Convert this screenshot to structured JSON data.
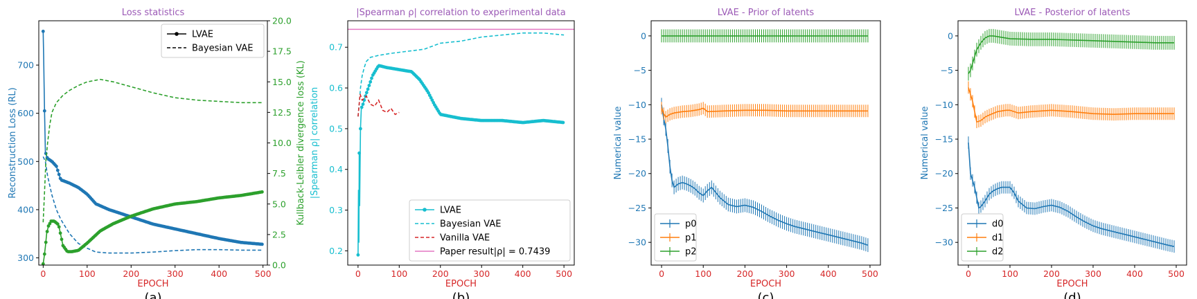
{
  "chart_data": [
    {
      "type": "line",
      "panel_label": "(a)",
      "title": "Loss statistics",
      "title_color": "#9b59b6",
      "xlabel": "EPOCH",
      "xlabel_color": "#d62728",
      "ylabel": "Reconstruction Loss (RL)",
      "ylabel_color": "#1f77b4",
      "y2label": "Kullback-Leibler divergence loss (KL)",
      "y2label_color": "#2ca02c",
      "xlim": [
        -10,
        510
      ],
      "ylim": [
        285,
        792
      ],
      "y2lim": [
        0,
        20
      ],
      "xticks": [
        0,
        100,
        200,
        300,
        400,
        500
      ],
      "yticks": [
        300,
        400,
        500,
        600,
        700
      ],
      "y2ticks": [
        0.0,
        2.5,
        5.0,
        7.5,
        10.0,
        12.5,
        15.0,
        17.5,
        20.0
      ],
      "y2tick_labels": [
        "0.0",
        "2.5",
        "5.0",
        "7.5",
        "10.0",
        "12.5",
        "15.0",
        "17.5",
        "20.0"
      ],
      "legend": {
        "position": "top-right",
        "entries": [
          {
            "label": "LVAE",
            "style": "solid-marker",
            "color": "#000000"
          },
          {
            "label": "Bayesian VAE",
            "style": "dashed",
            "color": "#000000"
          }
        ]
      },
      "series": [
        {
          "name": "RL (LVAE)",
          "axis": "left",
          "style": "solid-marker",
          "color": "#1f77b4",
          "x": [
            0,
            1,
            2,
            3,
            5,
            8,
            10,
            20,
            30,
            40,
            60,
            80,
            100,
            120,
            150,
            200,
            250,
            300,
            350,
            400,
            450,
            500
          ],
          "y": [
            770,
            720,
            665,
            605,
            520,
            510,
            506,
            500,
            490,
            462,
            455,
            446,
            432,
            412,
            400,
            385,
            370,
            360,
            350,
            340,
            332,
            328
          ]
        },
        {
          "name": "RL (Bayesian VAE)",
          "axis": "left",
          "style": "dashed",
          "color": "#1f77b4",
          "x": [
            0,
            5,
            10,
            20,
            30,
            40,
            60,
            80,
            100,
            120,
            150,
            200,
            250,
            300,
            350,
            400,
            450,
            500
          ],
          "y": [
            510,
            500,
            470,
            430,
            400,
            380,
            350,
            330,
            320,
            312,
            310,
            310,
            312,
            315,
            317,
            317,
            316,
            316
          ]
        },
        {
          "name": "KL (LVAE)",
          "axis": "right",
          "style": "solid-marker",
          "color": "#2ca02c",
          "x": [
            0,
            2,
            5,
            8,
            12,
            18,
            25,
            35,
            45,
            55,
            65,
            80,
            100,
            130,
            160,
            200,
            250,
            300,
            350,
            400,
            450,
            500
          ],
          "y": [
            0.1,
            0.6,
            1.5,
            2.6,
            3.2,
            3.6,
            3.6,
            3.3,
            1.6,
            1.1,
            1.1,
            1.2,
            1.8,
            2.8,
            3.4,
            4.0,
            4.6,
            5.0,
            5.2,
            5.5,
            5.7,
            6.0
          ]
        },
        {
          "name": "KL (Bayesian VAE)",
          "axis": "right",
          "style": "dashed",
          "color": "#2ca02c",
          "x": [
            0,
            3,
            6,
            10,
            15,
            20,
            30,
            45,
            60,
            80,
            100,
            130,
            160,
            200,
            250,
            300,
            350,
            400,
            450,
            500
          ],
          "y": [
            3.5,
            6.0,
            8.5,
            10.0,
            11.5,
            12.5,
            13.3,
            13.9,
            14.3,
            14.7,
            15.0,
            15.2,
            15.0,
            14.6,
            14.1,
            13.7,
            13.5,
            13.4,
            13.3,
            13.3
          ]
        }
      ]
    },
    {
      "type": "line",
      "panel_label": "(b)",
      "title": "|Spearman ρ| correlation to experimental data",
      "title_color": "#9b59b6",
      "xlabel": "EPOCH",
      "xlabel_color": "#d62728",
      "ylabel": "|Spearman ρ| correlation",
      "ylabel_color": "#17becf",
      "xlim": [
        -25,
        525
      ],
      "ylim": [
        0.165,
        0.765
      ],
      "xticks": [
        0,
        100,
        200,
        300,
        400,
        500
      ],
      "yticks": [
        0.2,
        0.3,
        0.4,
        0.5,
        0.6,
        0.7
      ],
      "ytick_labels": [
        "0.2",
        "0.3",
        "0.4",
        "0.5",
        "0.6",
        "0.7"
      ],
      "hline": {
        "y": 0.7439,
        "color": "#e377c2"
      },
      "legend": {
        "position": "bottom-right",
        "entries": [
          {
            "label": "LVAE",
            "style": "solid-marker",
            "color": "#17becf"
          },
          {
            "label": "Bayesian VAE",
            "style": "dashed",
            "color": "#17becf"
          },
          {
            "label": "Vanilla VAE",
            "style": "dashed",
            "color": "#d62728"
          },
          {
            "label": "Paper result|ρ| = 0.7439",
            "style": "solid",
            "color": "#e377c2"
          }
        ]
      },
      "series": [
        {
          "name": "LVAE",
          "style": "solid-marker",
          "color": "#17becf",
          "x": [
            0,
            1,
            2,
            3,
            4,
            6,
            8,
            12,
            18,
            25,
            35,
            50,
            70,
            100,
            130,
            150,
            170,
            185,
            200,
            250,
            300,
            350,
            400,
            450,
            500
          ],
          "y": [
            0.19,
            0.35,
            0.22,
            0.44,
            0.31,
            0.5,
            0.55,
            0.56,
            0.58,
            0.6,
            0.63,
            0.655,
            0.65,
            0.645,
            0.64,
            0.62,
            0.59,
            0.56,
            0.535,
            0.525,
            0.52,
            0.52,
            0.515,
            0.52,
            0.515
          ]
        },
        {
          "name": "Bayesian VAE",
          "style": "dashed",
          "color": "#17becf",
          "x": [
            0,
            3,
            6,
            10,
            15,
            20,
            30,
            50,
            80,
            120,
            160,
            200,
            250,
            300,
            350,
            400,
            450,
            500
          ],
          "y": [
            0.53,
            0.56,
            0.6,
            0.63,
            0.65,
            0.665,
            0.675,
            0.68,
            0.685,
            0.69,
            0.695,
            0.71,
            0.715,
            0.725,
            0.73,
            0.735,
            0.735,
            0.73
          ]
        },
        {
          "name": "Vanilla VAE",
          "style": "dashed",
          "color": "#d62728",
          "x": [
            0,
            5,
            10,
            20,
            30,
            40,
            50,
            60,
            70,
            80,
            90,
            100
          ],
          "y": [
            0.53,
            0.585,
            0.57,
            0.58,
            0.56,
            0.555,
            0.57,
            0.545,
            0.54,
            0.55,
            0.535,
            0.54
          ]
        }
      ]
    },
    {
      "type": "line",
      "panel_label": "(c)",
      "title": "LVAE - Prior of latents",
      "title_color": "#9b59b6",
      "xlabel": "EPOCH",
      "xlabel_color": "#d62728",
      "ylabel": "Numerical value",
      "ylabel_color": "#1f77b4",
      "xlim": [
        -25,
        525
      ],
      "ylim": [
        -33.3,
        2.2
      ],
      "xticks": [
        0,
        100,
        200,
        300,
        400,
        500
      ],
      "yticks": [
        0,
        -5,
        -10,
        -15,
        -20,
        -25,
        -30
      ],
      "errorbars": true,
      "legend": {
        "position": "bottom-left",
        "entries": [
          {
            "label": "p0",
            "color": "#1f77b4"
          },
          {
            "label": "p1",
            "color": "#ff7f0e"
          },
          {
            "label": "p2",
            "color": "#2ca02c"
          }
        ]
      },
      "series": [
        {
          "name": "p0",
          "color": "#1f77b4",
          "err": 1.0,
          "x": [
            0,
            5,
            10,
            15,
            20,
            25,
            30,
            40,
            50,
            60,
            70,
            80,
            90,
            100,
            110,
            120,
            140,
            160,
            180,
            200,
            220,
            240,
            260,
            280,
            300,
            320,
            340,
            360,
            380,
            400,
            420,
            440,
            460,
            480,
            495
          ],
          "y": [
            -10,
            -12,
            -13.5,
            -16,
            -19,
            -21,
            -22,
            -21.5,
            -21.3,
            -21.5,
            -21.8,
            -22.2,
            -22.8,
            -23.2,
            -22.5,
            -22.0,
            -23.5,
            -24.5,
            -24.8,
            -24.6,
            -24.9,
            -25.5,
            -26.2,
            -26.8,
            -27.3,
            -27.7,
            -28.0,
            -28.3,
            -28.6,
            -28.9,
            -29.2,
            -29.5,
            -29.8,
            -30.1,
            -30.4
          ]
        },
        {
          "name": "p1",
          "color": "#ff7f0e",
          "err": 0.9,
          "x": [
            0,
            5,
            10,
            20,
            30,
            50,
            70,
            90,
            100,
            110,
            150,
            200,
            250,
            300,
            350,
            400,
            450,
            495
          ],
          "y": [
            -10.5,
            -11.3,
            -11.8,
            -11.4,
            -11.2,
            -11.0,
            -10.9,
            -10.7,
            -10.5,
            -11.0,
            -10.9,
            -10.8,
            -10.8,
            -10.9,
            -10.9,
            -10.9,
            -10.9,
            -10.9
          ]
        },
        {
          "name": "p2",
          "color": "#2ca02c",
          "err": 0.95,
          "x": [
            0,
            100,
            200,
            300,
            400,
            495
          ],
          "y": [
            0.0,
            0.0,
            0.0,
            0.0,
            0.0,
            0.0
          ]
        }
      ]
    },
    {
      "type": "line",
      "panel_label": "(d)",
      "title": "LVAE - Posterior of latents",
      "title_color": "#9b59b6",
      "xlabel": "EPOCH",
      "xlabel_color": "#d62728",
      "ylabel": "Numerical value",
      "ylabel_color": "#1f77b4",
      "xlim": [
        -25,
        525
      ],
      "ylim": [
        -33.3,
        2.2
      ],
      "xticks": [
        0,
        100,
        200,
        300,
        400,
        500
      ],
      "yticks": [
        0,
        -5,
        -10,
        -15,
        -20,
        -25,
        -30
      ],
      "errorbars": true,
      "legend": {
        "position": "bottom-left",
        "entries": [
          {
            "label": "d0",
            "color": "#1f77b4"
          },
          {
            "label": "d1",
            "color": "#ff7f0e"
          },
          {
            "label": "d2",
            "color": "#2ca02c"
          }
        ]
      },
      "series": [
        {
          "name": "d0",
          "color": "#1f77b4",
          "err": 0.9,
          "x": [
            0,
            5,
            10,
            15,
            20,
            25,
            30,
            40,
            50,
            60,
            70,
            80,
            90,
            100,
            110,
            120,
            140,
            160,
            180,
            200,
            220,
            240,
            260,
            280,
            300,
            320,
            340,
            360,
            380,
            400,
            420,
            440,
            460,
            480,
            495
          ],
          "y": [
            -15.5,
            -20,
            -21,
            -22,
            -23.5,
            -25,
            -24.8,
            -24,
            -23,
            -22.5,
            -22.2,
            -22.0,
            -22.0,
            -22.0,
            -22.8,
            -24.0,
            -25.0,
            -25.1,
            -24.8,
            -24.6,
            -24.9,
            -25.5,
            -26.3,
            -27.0,
            -27.6,
            -28.0,
            -28.3,
            -28.6,
            -28.9,
            -29.2,
            -29.5,
            -29.8,
            -30.1,
            -30.4,
            -30.6
          ]
        },
        {
          "name": "d1",
          "color": "#ff7f0e",
          "err": 0.9,
          "x": [
            0,
            5,
            10,
            15,
            20,
            30,
            40,
            50,
            70,
            90,
            100,
            120,
            150,
            200,
            250,
            300,
            350,
            400,
            450,
            495
          ],
          "y": [
            -7.5,
            -8.5,
            -9.5,
            -11.0,
            -12.5,
            -12.3,
            -11.8,
            -11.5,
            -11.0,
            -10.8,
            -10.8,
            -11.2,
            -11.0,
            -10.8,
            -11.0,
            -11.3,
            -11.4,
            -11.3,
            -11.3,
            -11.3
          ]
        },
        {
          "name": "d2",
          "color": "#2ca02c",
          "err": 1.0,
          "x": [
            0,
            5,
            10,
            15,
            20,
            30,
            40,
            50,
            60,
            80,
            100,
            150,
            200,
            250,
            300,
            350,
            400,
            450,
            495
          ],
          "y": [
            -5.5,
            -5.0,
            -4.0,
            -3.0,
            -2.0,
            -1.0,
            -0.3,
            0.0,
            0.0,
            -0.2,
            -0.4,
            -0.5,
            -0.5,
            -0.6,
            -0.7,
            -0.8,
            -0.9,
            -1.0,
            -1.0
          ]
        }
      ]
    }
  ]
}
